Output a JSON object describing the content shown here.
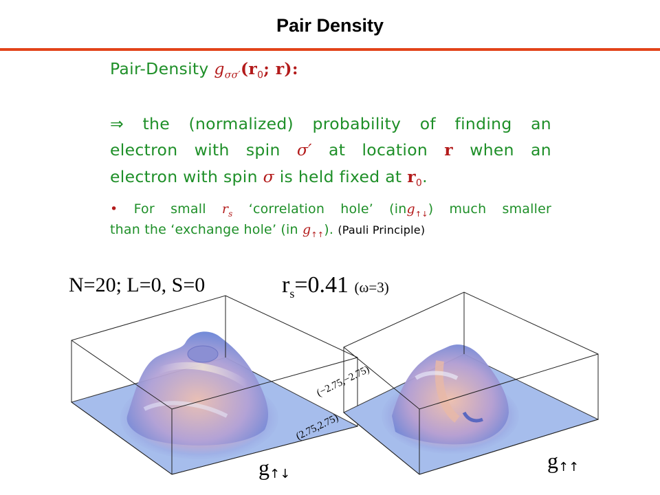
{
  "slide": {
    "title": "Pair Density"
  },
  "definition": {
    "label": "Pair-Density",
    "symbol": "g",
    "symbol_sub": "σσ′",
    "args": "(r",
    "args_sub": "0",
    "args_rest": "; r):"
  },
  "meaning": {
    "line1": "⇒ the (normalized) probability of finding an",
    "line2_a": "electron with spin",
    "line2_sym": "σ′",
    "line2_b": "at location",
    "line2_r": "r",
    "line2_c": "when an",
    "line3_a": "electron with spin",
    "line3_sym": "σ",
    "line3_b": "is held fixed at",
    "line3_r": "r",
    "line3_sub": "0",
    "line3_end": "."
  },
  "note": {
    "bullet": "•",
    "l1_a": "For small",
    "l1_rs": "r",
    "l1_rs_sub": "s",
    "l1_b": "‘correlation hole’ (in",
    "l1_g": "g",
    "l1_g_sub": "↑↓",
    "l1_c": ") much smaller",
    "l2_a": "than the ‘exchange hole’ (in",
    "l2_g": "g",
    "l2_g_sub": "↑↑",
    "l2_b": ").",
    "l2_c": "(Pauli Principle)"
  },
  "parameters": {
    "system": "N=20;   L=0,  S=0",
    "rs_r": "r",
    "rs_sub": "s",
    "rs_value": "=0.41",
    "omega": "(ω=3)"
  },
  "plots": [
    {
      "label": "g",
      "spins": "↑↓"
    },
    {
      "label": "g",
      "spins": "↑↑"
    }
  ],
  "coords": {
    "upper": "(−2.75,−2.75)",
    "lower": "(2.75,2.75)"
  },
  "colors": {
    "title_rule": "#e2431a",
    "text_green": "#1e8f28",
    "text_red": "#b31b1b",
    "surface_base": "#9fb8ea"
  }
}
